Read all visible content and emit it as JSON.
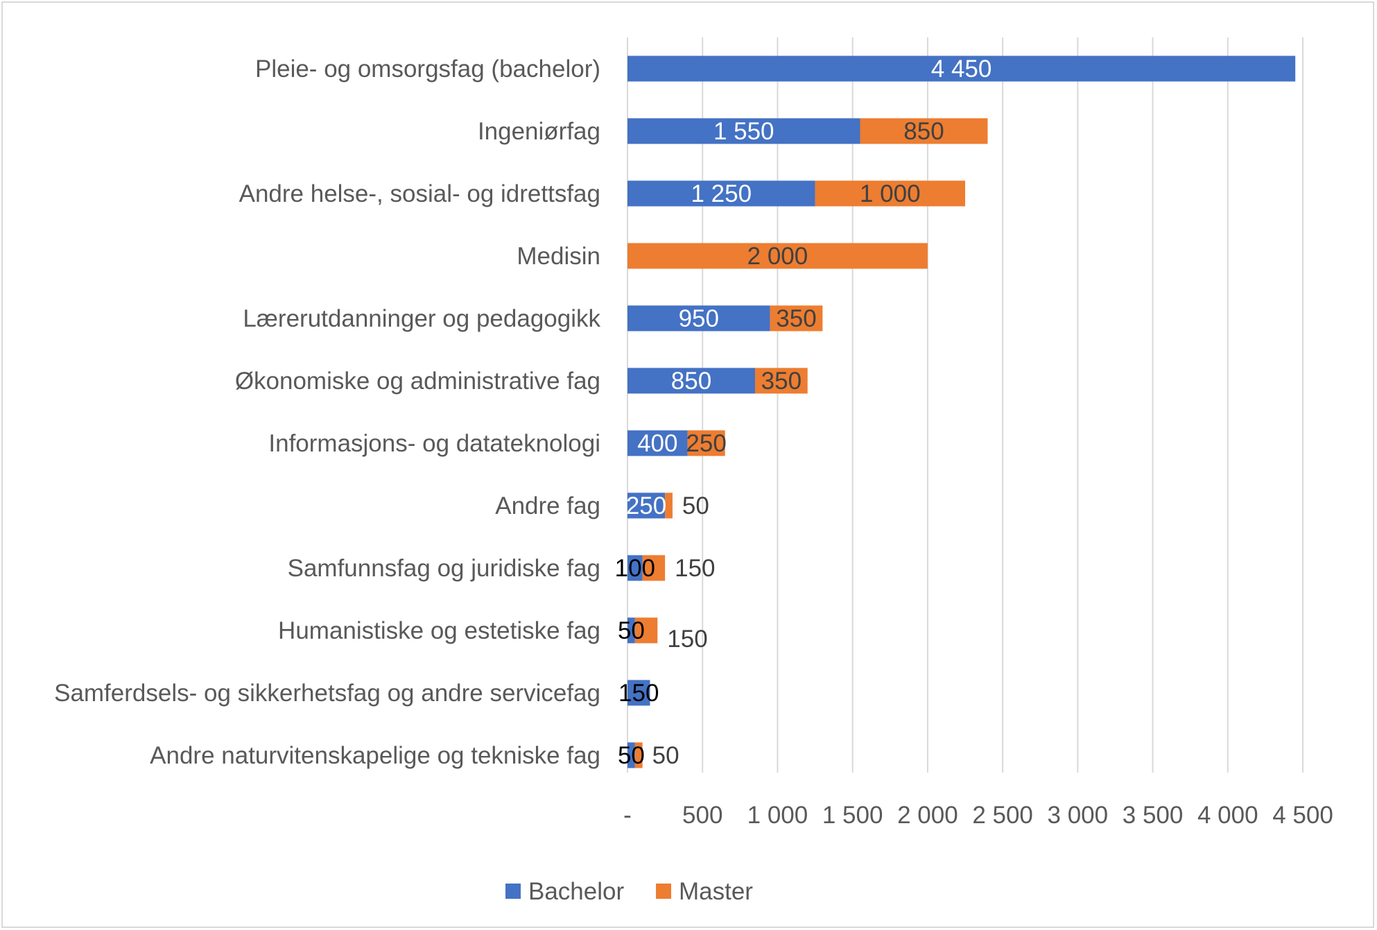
{
  "chart_data": {
    "type": "bar",
    "orientation": "horizontal",
    "stacked": true,
    "categories": [
      "Pleie- og omsorgsfag (bachelor)",
      "Ingeniørfag",
      "Andre helse-, sosial- og idrettsfag",
      "Medisin",
      "Lærerutdanninger og pedagogikk",
      "Økonomiske og administrative fag",
      "Informasjons- og datateknologi",
      "Andre fag",
      "Samfunnsfag og juridiske fag",
      "Humanistiske og estetiske fag",
      "Samferdsels- og sikkerhetsfag og andre servicefag",
      "Andre naturvitenskapelige og tekniske fag"
    ],
    "series": [
      {
        "name": "Bachelor",
        "color": "#4472C4",
        "values": [
          4450,
          1550,
          1250,
          0,
          950,
          850,
          400,
          250,
          100,
          50,
          150,
          50
        ],
        "labels": [
          "4 450",
          "1 550",
          "1 250",
          "",
          "950",
          "850",
          "400",
          "250",
          "100",
          "50",
          "150",
          "50"
        ]
      },
      {
        "name": "Master",
        "color": "#ED7D31",
        "values": [
          0,
          850,
          1000,
          2000,
          350,
          350,
          250,
          50,
          150,
          150,
          0,
          50
        ],
        "labels": [
          "",
          "850",
          "1 000",
          "2 000",
          "350",
          "350",
          "250",
          "50",
          "150",
          "150",
          "",
          "50"
        ]
      }
    ],
    "xlim": [
      0,
      4500
    ],
    "xticks": [
      0,
      500,
      1000,
      1500,
      2000,
      2500,
      3000,
      3500,
      4000,
      4500
    ],
    "xtick_labels": [
      "-",
      "500",
      "1 000",
      "1 500",
      "2 000",
      "2 500",
      "3 000",
      "3 500",
      "4 000",
      "4 500"
    ],
    "grid": true,
    "legend": "bottom",
    "title": "",
    "xlabel": "",
    "ylabel": ""
  }
}
